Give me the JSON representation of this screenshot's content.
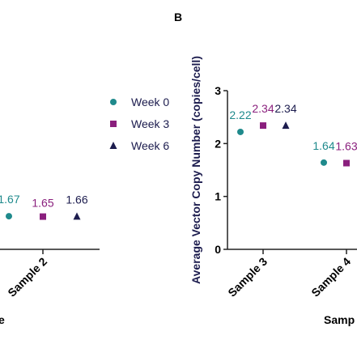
{
  "chart_data": [
    {
      "type": "dot",
      "xlabel": "e",
      "categories": [
        "Sample 2"
      ],
      "ylim": [
        0,
        8
      ],
      "legend": "right",
      "series": [
        {
          "name": "Week 0",
          "color": "#1f8a8c",
          "marker": "circle",
          "values": [
            1.67
          ]
        },
        {
          "name": "Week 3",
          "color": "#8a1f7d",
          "marker": "square",
          "values": [
            1.65
          ]
        },
        {
          "name": "Week 6",
          "color": "#1c1c4e",
          "marker": "triangle",
          "values": [
            1.66
          ]
        }
      ]
    },
    {
      "type": "dot",
      "panel": "B",
      "ylabel": "Average Vector Copy Number (copies/cell)",
      "xlabel": "Samp",
      "categories": [
        "Sample 3",
        "Sample 4"
      ],
      "ylim": [
        0,
        3
      ],
      "yticks": [
        0,
        1,
        2,
        3
      ],
      "series": [
        {
          "color": "#1f8a8c",
          "marker": "circle",
          "values": [
            2.22,
            1.64
          ]
        },
        {
          "color": "#8a1f7d",
          "marker": "square",
          "values": [
            2.34,
            1.63
          ]
        },
        {
          "color": "#1c1c4e",
          "marker": "triangle",
          "values": [
            2.34,
            null
          ]
        }
      ]
    }
  ]
}
